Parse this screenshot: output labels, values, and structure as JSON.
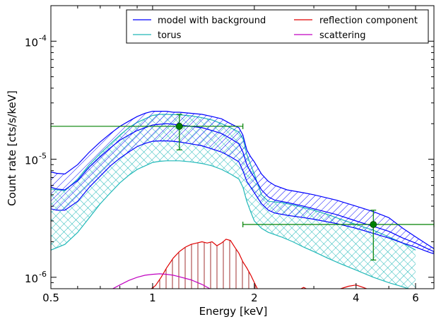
{
  "chart_data": {
    "type": "line",
    "xlabel": "Energy [keV]",
    "ylabel": "Count rate [cts/s/keV]",
    "xscale": "log",
    "yscale": "log",
    "xlim": [
      0.5,
      6.8
    ],
    "ylim": [
      8e-07,
      0.0002
    ],
    "x_ticks": [
      {
        "value": 0.5,
        "label": "0.5"
      },
      {
        "value": 1,
        "label": "1"
      },
      {
        "value": 2,
        "label": "2"
      },
      {
        "value": 4,
        "label": "4"
      },
      {
        "value": 6,
        "label": "6"
      }
    ],
    "y_ticks": [
      {
        "value": 1e-06,
        "label": "10",
        "exp": "-6"
      },
      {
        "value": 1e-05,
        "label": "10",
        "exp": "-5"
      },
      {
        "value": 0.0001,
        "label": "10",
        "exp": "-4"
      }
    ],
    "legend": {
      "placement": "top-right",
      "columns": 2,
      "entries": [
        {
          "name": "model with background",
          "color": "#0000ff"
        },
        {
          "name": "torus",
          "color": "#20b8b8"
        },
        {
          "name": "reflection component",
          "color": "#e00000"
        },
        {
          "name": "scattering",
          "color": "#c000c0"
        }
      ]
    },
    "series": [
      {
        "name": "model with background",
        "color": "#0000ff",
        "hatch": "diagonal",
        "x": [
          0.5,
          0.52,
          0.55,
          0.6,
          0.65,
          0.7,
          0.75,
          0.8,
          0.85,
          0.9,
          0.95,
          1.0,
          1.05,
          1.1,
          1.15,
          1.2,
          1.3,
          1.4,
          1.5,
          1.6,
          1.7,
          1.8,
          1.85,
          1.9,
          1.95,
          2.0,
          2.1,
          2.2,
          2.3,
          2.5,
          2.8,
          3.0,
          3.5,
          4.0,
          4.5,
          5.0,
          5.5,
          6.0,
          6.5,
          6.8
        ],
        "upper": [
          7.8e-06,
          7.6e-06,
          7.5e-06,
          9e-06,
          1.15e-05,
          1.4e-05,
          1.65e-05,
          1.9e-05,
          2.1e-05,
          2.3e-05,
          2.45e-05,
          2.55e-05,
          2.55e-05,
          2.55e-05,
          2.5e-05,
          2.5e-05,
          2.45e-05,
          2.4e-05,
          2.3e-05,
          2.2e-05,
          2e-05,
          1.85e-05,
          1.6e-05,
          1.2e-05,
          1.05e-05,
          9.5e-06,
          7.5e-06,
          6.5e-06,
          6e-06,
          5.5e-06,
          5.2e-06,
          5e-06,
          4.5e-06,
          4e-06,
          3.6e-06,
          3.2e-06,
          2.6e-06,
          2.2e-06,
          1.9e-06,
          1.75e-06
        ],
        "mid": [
          5.8e-06,
          5.6e-06,
          5.5e-06,
          6.6e-06,
          8.6e-06,
          1.05e-05,
          1.25e-05,
          1.45e-05,
          1.6e-05,
          1.75e-05,
          1.85e-05,
          1.95e-05,
          1.98e-05,
          2e-05,
          1.98e-05,
          1.95e-05,
          1.9e-05,
          1.85e-05,
          1.75e-05,
          1.65e-05,
          1.5e-05,
          1.35e-05,
          1.15e-05,
          9e-06,
          7.8e-06,
          7e-06,
          5.5e-06,
          4.8e-06,
          4.5e-06,
          4.3e-06,
          4e-06,
          3.8e-06,
          3.4e-06,
          3e-06,
          2.7e-06,
          2.45e-06,
          2.15e-06,
          1.95e-06,
          1.75e-06,
          1.65e-06
        ],
        "lower": [
          3.8e-06,
          3.7e-06,
          3.7e-06,
          4.4e-06,
          5.8e-06,
          7.2e-06,
          8.8e-06,
          1.02e-05,
          1.15e-05,
          1.28e-05,
          1.36e-05,
          1.42e-05,
          1.43e-05,
          1.43e-05,
          1.42e-05,
          1.4e-05,
          1.35e-05,
          1.3e-05,
          1.22e-05,
          1.15e-05,
          1.05e-05,
          9.5e-06,
          8e-06,
          6.5e-06,
          5.8e-06,
          5.2e-06,
          4.2e-06,
          3.7e-06,
          3.5e-06,
          3.35e-06,
          3.2e-06,
          3.1e-06,
          2.85e-06,
          2.6e-06,
          2.35e-06,
          2.15e-06,
          1.95e-06,
          1.8e-06,
          1.65e-06,
          1.58e-06
        ]
      },
      {
        "name": "torus",
        "color": "#20b8b8",
        "hatch": "cross",
        "x": [
          0.5,
          0.55,
          0.6,
          0.65,
          0.7,
          0.75,
          0.8,
          0.85,
          0.9,
          0.95,
          1.0,
          1.05,
          1.1,
          1.2,
          1.3,
          1.4,
          1.5,
          1.6,
          1.7,
          1.8,
          1.85,
          1.9,
          1.95,
          2.0,
          2.1,
          2.2,
          2.4,
          2.6,
          2.8,
          3.0,
          3.3,
          3.6,
          4.0,
          4.5,
          5.0,
          5.5,
          6.0
        ],
        "upper": [
          5.6e-06,
          5.4e-06,
          6.8e-06,
          9e-06,
          1.12e-05,
          1.35e-05,
          1.6e-05,
          1.85e-05,
          2.05e-05,
          2.2e-05,
          2.35e-05,
          2.4e-05,
          2.4e-05,
          2.38e-05,
          2.33e-05,
          2.25e-05,
          2.15e-05,
          2e-05,
          1.85e-05,
          1.7e-05,
          1.5e-05,
          1.1e-05,
          9e-06,
          7.5e-06,
          5e-06,
          4.4e-06,
          4.3e-06,
          4.1e-06,
          3.9e-06,
          3.7e-06,
          3.4e-06,
          3.1e-06,
          2.8e-06,
          2.5e-06,
          2.2e-06,
          1.95e-06,
          1.7e-06
        ],
        "lower": [
          1.7e-06,
          1.9e-06,
          2.4e-06,
          3.2e-06,
          4.2e-06,
          5.2e-06,
          6.3e-06,
          7.3e-06,
          8.2e-06,
          8.8e-06,
          9.4e-06,
          9.6e-06,
          9.7e-06,
          9.7e-06,
          9.5e-06,
          9.2e-06,
          8.8e-06,
          8.2e-06,
          7.5e-06,
          6.8e-06,
          5.8e-06,
          4.4e-06,
          3.6e-06,
          3e-06,
          2.6e-06,
          2.4e-06,
          2.2e-06,
          2e-06,
          1.8e-06,
          1.65e-06,
          1.45e-06,
          1.3e-06,
          1.15e-06,
          1e-06,
          9e-07,
          8.3e-07,
          7.6e-07
        ]
      },
      {
        "name": "reflection component",
        "color": "#e00000",
        "hatch": "vertical",
        "x": [
          0.98,
          1.02,
          1.06,
          1.1,
          1.15,
          1.2,
          1.25,
          1.3,
          1.35,
          1.4,
          1.45,
          1.5,
          1.55,
          1.6,
          1.65,
          1.7,
          1.75,
          1.8,
          1.85,
          1.9,
          1.95,
          2.0,
          2.05
        ],
        "upper": [
          7.8e-07,
          8.5e-07,
          1e-06,
          1.2e-06,
          1.45e-06,
          1.65e-06,
          1.8e-06,
          1.9e-06,
          1.95e-06,
          2e-06,
          1.95e-06,
          2e-06,
          1.85e-06,
          1.95e-06,
          2.1e-06,
          2.05e-06,
          1.8e-06,
          1.6e-06,
          1.35e-06,
          1.2e-06,
          1.05e-06,
          9e-07,
          7.8e-07
        ],
        "lower": [
          7.8e-07,
          7.8e-07,
          7.8e-07,
          7.8e-07,
          7.8e-07,
          7.8e-07,
          7.8e-07,
          7.8e-07,
          7.8e-07,
          7.8e-07,
          7.8e-07,
          7.8e-07,
          7.8e-07,
          7.8e-07,
          7.8e-07,
          7.8e-07,
          7.8e-07,
          7.8e-07,
          7.8e-07,
          7.8e-07,
          7.8e-07,
          7.8e-07,
          7.8e-07
        ],
        "extra": {
          "x": [
            2.7,
            2.8,
            2.9,
            3.5,
            3.8,
            4.0,
            4.2,
            4.4
          ],
          "y": [
            7.8e-07,
            8.2e-07,
            7.8e-07,
            7.8e-07,
            8.4e-07,
            8.6e-07,
            8.2e-07,
            7.8e-07
          ]
        }
      },
      {
        "name": "scattering",
        "color": "#c000c0",
        "x": [
          0.75,
          0.8,
          0.85,
          0.9,
          0.95,
          1.0,
          1.05,
          1.1,
          1.15,
          1.2,
          1.3,
          1.4,
          1.5
        ],
        "y": [
          7.8e-07,
          8.6e-07,
          9.4e-07,
          1e-06,
          1.04e-06,
          1.06e-06,
          1.07e-06,
          1.06e-06,
          1.04e-06,
          1.01e-06,
          9.5e-07,
          8.7e-07,
          7.8e-07
        ]
      }
    ],
    "data_points": [
      {
        "x": 1.2,
        "y": 1.9e-05,
        "xerr": [
          0.5,
          1.85
        ],
        "yerr": [
          1.2e-05,
          2.4e-05
        ],
        "color": "#008000"
      },
      {
        "x": 4.5,
        "y": 2.8e-06,
        "xerr": [
          1.85,
          6.8
        ],
        "yerr": [
          1.4e-06,
          3.7e-06
        ],
        "color": "#008000"
      }
    ]
  }
}
